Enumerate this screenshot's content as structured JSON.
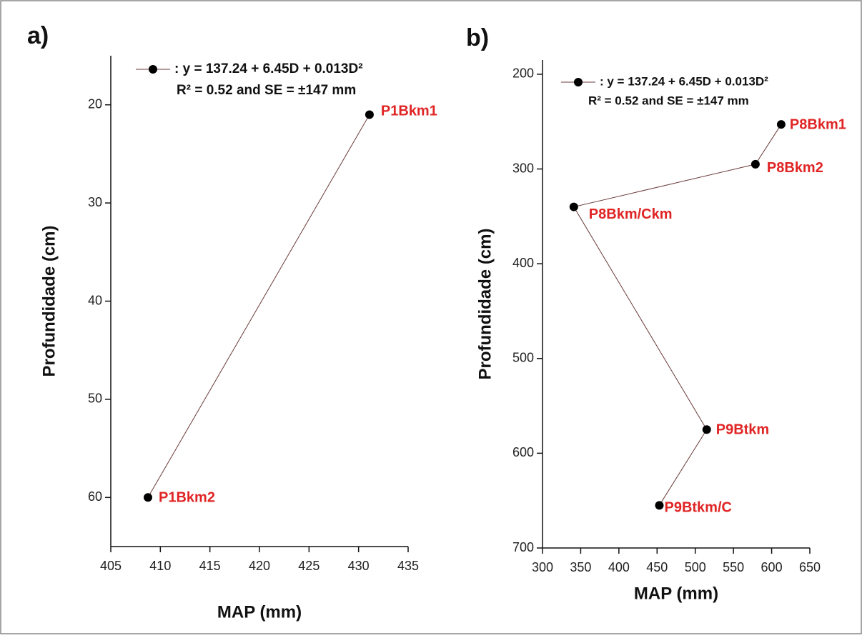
{
  "chart_data": [
    {
      "type": "line",
      "title": "a)",
      "x_label": "MAP (mm)",
      "y_label": "Profundidade (cm)",
      "x": [
        431.1,
        408.75
      ],
      "series": [
        {
          "name": ": y = 137.24 + 6.45D + 0.013D²",
          "color": "#6b3a3a",
          "marker_color": "#000000",
          "label_color": "#e02424",
          "values": [
            21,
            60
          ],
          "point_labels": [
            "P1Bkm1",
            "P1Bkm2"
          ]
        }
      ],
      "legend_note": "R² = 0.52 and SE = ±147 mm",
      "xlim": [
        405,
        435
      ],
      "xticks": [
        405,
        410,
        415,
        420,
        425,
        430,
        435
      ],
      "ylim": [
        15,
        65
      ],
      "yticks": [
        20,
        30,
        40,
        50,
        60
      ],
      "y_inverted": true
    },
    {
      "type": "line",
      "title": "b)",
      "x_label": "MAP (mm)",
      "y_label": "Profundidade (cm)",
      "x": [
        612.5,
        578.8,
        341,
        515,
        453
      ],
      "series": [
        {
          "name": ": y = 137.24 + 6.45D + 0.013D²",
          "color": "#6b3a3a",
          "marker_color": "#000000",
          "label_color": "#e02424",
          "values": [
            253,
            295,
            340,
            575,
            655
          ],
          "point_labels": [
            "P8Bkm1",
            "P8Bkm2",
            "P8Bkm/Ckm",
            "P9Btkm",
            "P9Btkm/C"
          ]
        }
      ],
      "legend_note": "R² = 0.52 and SE = ±147 mm",
      "xlim": [
        300,
        650
      ],
      "xticks": [
        300,
        350,
        400,
        450,
        500,
        550,
        600,
        650
      ],
      "ylim": [
        185,
        700
      ],
      "yticks": [
        200,
        300,
        400,
        500,
        600,
        700
      ],
      "y_inverted": true
    }
  ]
}
